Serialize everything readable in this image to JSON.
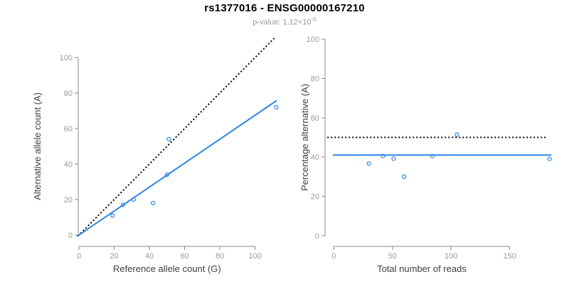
{
  "header": {
    "title": "rs1377016 - ENSG00000167210",
    "subtitle_prefix": "p-value: 1.12×10",
    "subtitle_exponent": "-5"
  },
  "colors": {
    "blue": "#2b87e8",
    "black": "#000000",
    "axis": "#8a8a8a",
    "tick_label": "#9a9a9a",
    "axis_title": "#404040",
    "title": "#000000",
    "subtitle": "#9a9a9a"
  },
  "chart_data": [
    {
      "type": "scatter",
      "name": "allele-counts-scatter",
      "xlabel": "Reference allele count (G)",
      "ylabel": "Alternative allele count (A)",
      "xticks": [
        0,
        20,
        40,
        60,
        80,
        100
      ],
      "yticks": [
        0,
        20,
        40,
        60,
        80,
        100
      ],
      "xlim": [
        0,
        112
      ],
      "ylim": [
        0,
        100
      ],
      "grid": false,
      "points": [
        [
          19,
          11
        ],
        [
          25,
          17
        ],
        [
          31,
          20
        ],
        [
          42,
          18
        ],
        [
          50,
          34
        ],
        [
          51,
          54
        ],
        [
          112,
          72
        ]
      ],
      "lines": [
        {
          "name": "identity-line",
          "style": "dotted",
          "color": "black",
          "slope": 1,
          "intercept": 0,
          "x_range": [
            -0.5,
            111.5
          ]
        },
        {
          "name": "fit-line",
          "style": "solid",
          "color": "blue",
          "slope": 0.675,
          "intercept": 0,
          "x_range": [
            -1.2,
            112.3
          ]
        }
      ]
    },
    {
      "type": "scatter",
      "name": "percentage-vs-reads-scatter",
      "xlabel": "Total number of reads",
      "ylabel": "Percentage alternative (A)",
      "xticks": [
        0,
        50,
        100,
        150
      ],
      "yticks": [
        0,
        20,
        40,
        60,
        80,
        100
      ],
      "xlim": [
        0,
        185
      ],
      "ylim": [
        0,
        100
      ],
      "grid": false,
      "points": [
        [
          30,
          36.7
        ],
        [
          42,
          40.5
        ],
        [
          51,
          39.2
        ],
        [
          60,
          30
        ],
        [
          84,
          40.5
        ],
        [
          105,
          51.4
        ],
        [
          184,
          39.1
        ]
      ],
      "lines": [
        {
          "name": "fifty-percent-line",
          "style": "dotted",
          "color": "black",
          "slope": 0,
          "intercept": 50,
          "x_range": [
            -5.5,
            182.5
          ]
        },
        {
          "name": "fit-line",
          "style": "solid",
          "color": "blue",
          "slope": 0,
          "intercept": 41,
          "x_range": [
            -0.8,
            185.5
          ]
        }
      ]
    }
  ]
}
